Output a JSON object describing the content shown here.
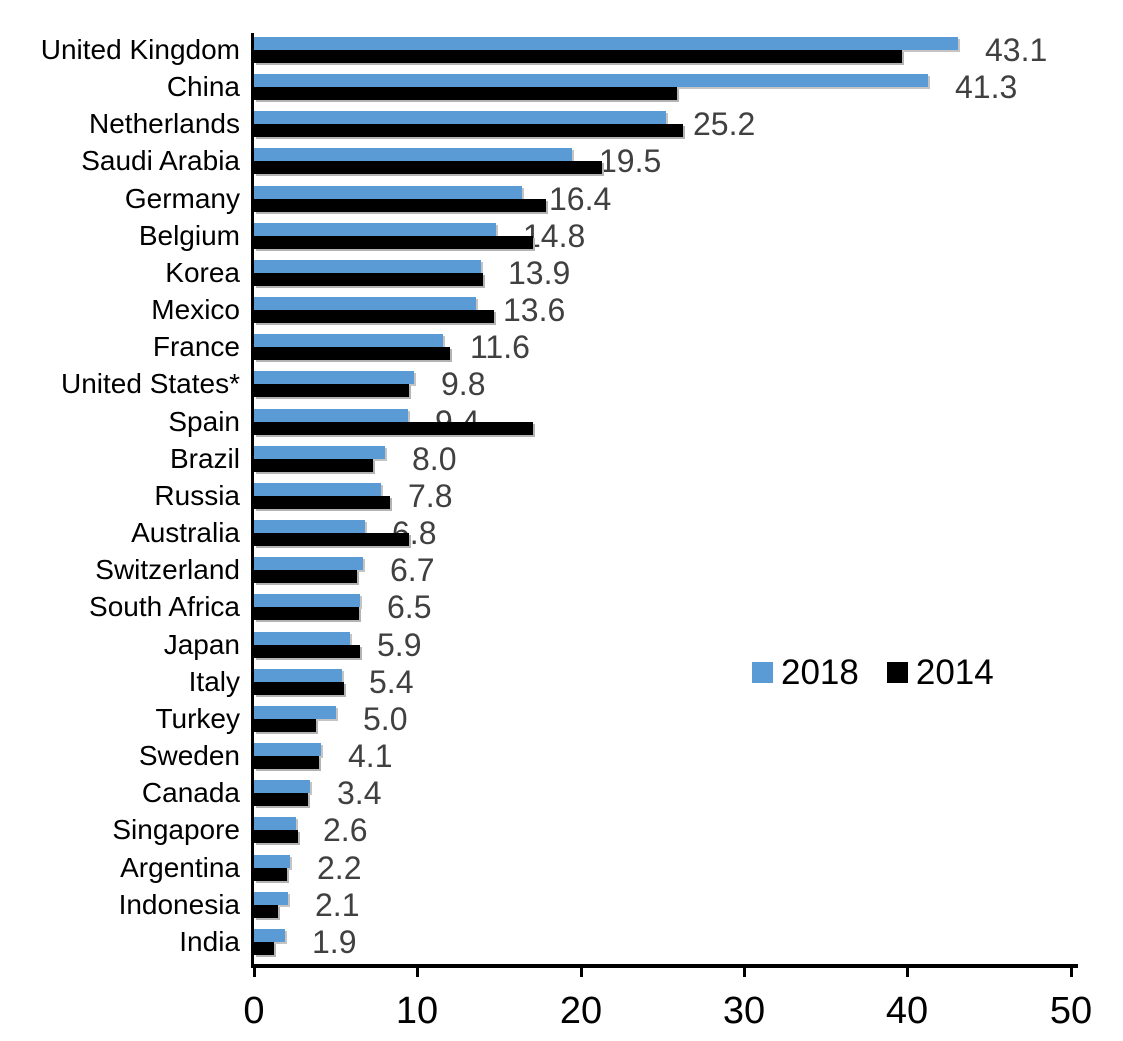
{
  "chart_data": {
    "type": "bar",
    "orientation": "horizontal",
    "title": "",
    "xlabel": "",
    "ylabel": "",
    "xlim": [
      0,
      50
    ],
    "x_tick_labels": [
      "0",
      "10",
      "20",
      "30",
      "40",
      "50"
    ],
    "grid": false,
    "legend_position": "middle-right",
    "categories": [
      "United Kingdom",
      "China",
      "Netherlands",
      "Saudi Arabia",
      "Germany",
      "Belgium",
      "Korea",
      "Mexico",
      "France",
      "United States*",
      "Spain",
      "Brazil",
      "Russia",
      "Australia",
      "Switzerland",
      "South Africa",
      "Japan",
      "Italy",
      "Turkey",
      "Sweden",
      "Canada",
      "Singapore",
      "Argentina",
      "Indonesia",
      "India"
    ],
    "series": [
      {
        "name": "2018",
        "color": "#5B9BD5",
        "values": [
          43.1,
          41.3,
          25.2,
          19.5,
          16.4,
          14.8,
          13.9,
          13.6,
          11.6,
          9.8,
          9.4,
          8.0,
          7.8,
          6.8,
          6.7,
          6.5,
          5.9,
          5.4,
          5.0,
          4.1,
          3.4,
          2.6,
          2.2,
          2.1,
          1.9
        ],
        "data_labels": [
          "43.1",
          "41.3",
          "25.2",
          "19.5",
          "16.4",
          "14.8",
          "13.9",
          "13.6",
          "11.6",
          "9.8",
          "9.4",
          "8.0",
          "7.8",
          "6.8",
          "6.7",
          "6.5",
          "5.9",
          "5.4",
          "5.0",
          "4.1",
          "3.4",
          "2.6",
          "2.2",
          "2.1",
          "1.9"
        ]
      },
      {
        "name": "2014",
        "color": "#000000",
        "values": [
          39.7,
          25.9,
          26.3,
          21.3,
          17.9,
          17.1,
          14.0,
          14.7,
          12.0,
          9.5,
          17.1,
          7.3,
          8.3,
          9.5,
          6.3,
          6.4,
          6.5,
          5.5,
          3.8,
          4.0,
          3.3,
          2.7,
          2.0,
          1.5,
          1.2
        ],
        "data_labels": []
      }
    ],
    "value_label_color": "#404040",
    "axis_color": "#000000"
  }
}
